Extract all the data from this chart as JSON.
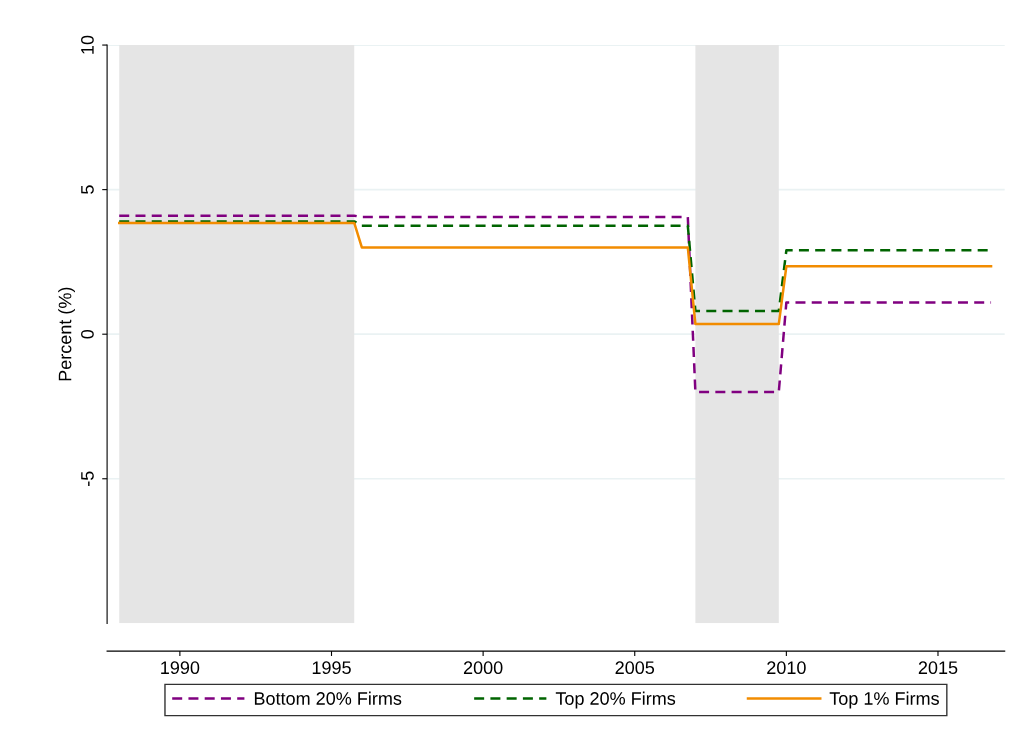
{
  "chart_data": {
    "type": "line",
    "ylabel": "Percent (%)",
    "x": [
      1988,
      1995.75,
      1996,
      2006.75,
      2007,
      2009.75,
      2010,
      2016.75
    ],
    "series": [
      {
        "name": "Bottom 20% Firms",
        "color": "#800080",
        "line_style": "dashed",
        "values": [
          4.1,
          4.1,
          4.05,
          4.05,
          -2.0,
          -2.0,
          1.1,
          1.1
        ]
      },
      {
        "name": "Top 20% Firms",
        "color": "#006400",
        "line_style": "dashed",
        "values": [
          3.9,
          3.9,
          3.75,
          3.75,
          0.8,
          0.8,
          2.9,
          2.9
        ]
      },
      {
        "name": "Top 1% Firms",
        "color": "#f28c00",
        "line_style": "solid",
        "values": [
          3.85,
          3.85,
          3.0,
          3.0,
          0.35,
          0.35,
          2.35,
          2.35
        ]
      }
    ],
    "xlim": [
      1987.6,
      2017.2
    ],
    "ylim": [
      -10,
      10
    ],
    "xticks": [
      1990,
      1995,
      2000,
      2005,
      2010,
      2015
    ],
    "yticks": [
      -5,
      0,
      5,
      10
    ],
    "bands": [
      {
        "axis": "x",
        "from": 1988,
        "to": 1995.75,
        "color": "#e5e5e5"
      },
      {
        "axis": "x",
        "from": 2007,
        "to": 2009.75,
        "color": "#e5e5e5"
      }
    ],
    "grid": "y",
    "legend": "bottom"
  }
}
